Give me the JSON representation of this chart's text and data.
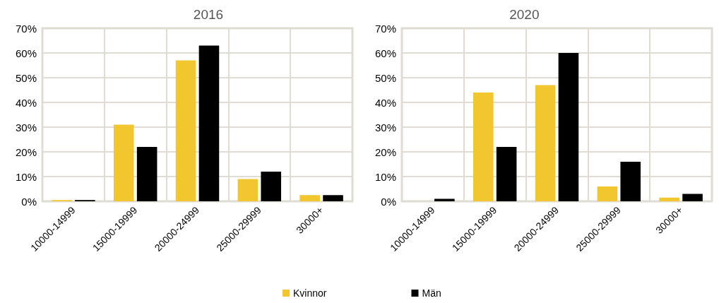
{
  "chart_data": [
    {
      "type": "bar",
      "title": "2016",
      "categories": [
        "10000-14999",
        "15000-19999",
        "20000-24999",
        "25000-29999",
        "30000+"
      ],
      "series": [
        {
          "name": "Kvinnor",
          "color": "#f2c62e",
          "values": [
            0.5,
            31,
            57,
            9,
            2.5
          ]
        },
        {
          "name": "Män",
          "color": "#000000",
          "values": [
            0.5,
            22,
            63,
            12,
            2.5
          ]
        }
      ],
      "ylim": [
        0,
        70
      ],
      "yticks": [
        {
          "value": 0,
          "label": "0%"
        },
        {
          "value": 10,
          "label": "10%"
        },
        {
          "value": 20,
          "label": "20%"
        },
        {
          "value": 30,
          "label": "30%"
        },
        {
          "value": 40,
          "label": "40%"
        },
        {
          "value": 50,
          "label": "50%"
        },
        {
          "value": 60,
          "label": "60%"
        },
        {
          "value": 70,
          "label": "70%"
        }
      ],
      "grid": true,
      "legend": "bottom"
    },
    {
      "type": "bar",
      "title": "2020",
      "categories": [
        "10000-14999",
        "15000-19999",
        "20000-24999",
        "25000-29999",
        "30000+"
      ],
      "series": [
        {
          "color": "#f2c62e",
          "values": [
            0,
            44,
            47,
            6,
            1.5
          ]
        },
        {
          "color": "#000000",
          "values": [
            1,
            22,
            60,
            16,
            3
          ]
        }
      ],
      "ylim": [
        0,
        70
      ],
      "yticks": [
        {
          "value": 0,
          "label": "0%"
        },
        {
          "value": 10,
          "label": "10%"
        },
        {
          "value": 20,
          "label": "20%"
        },
        {
          "value": 30,
          "label": "30%"
        },
        {
          "value": 40,
          "label": "40%"
        },
        {
          "value": 50,
          "label": "50%"
        },
        {
          "value": 60,
          "label": "60%"
        },
        {
          "value": 70,
          "label": "70%"
        }
      ],
      "grid": true,
      "legend": false
    }
  ]
}
